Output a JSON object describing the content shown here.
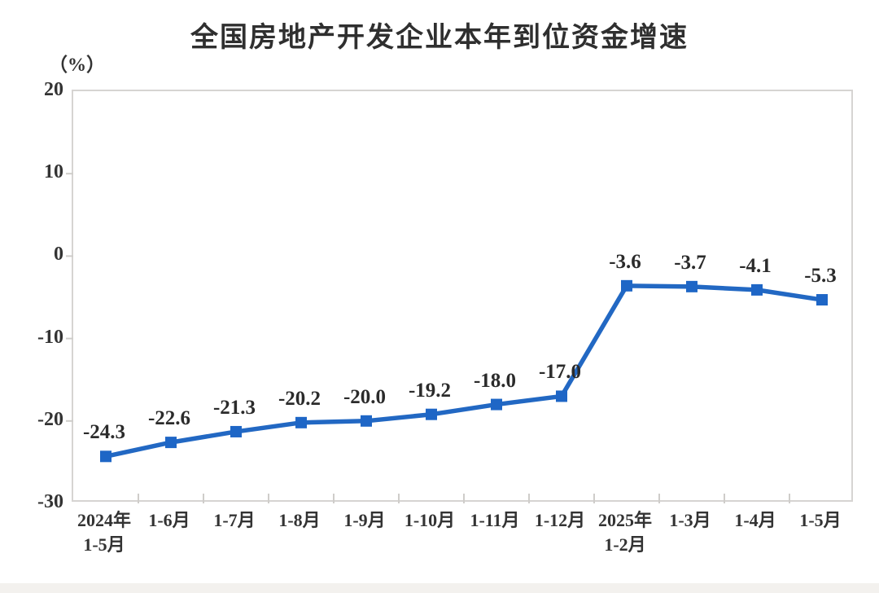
{
  "chart_data": {
    "type": "line",
    "title": "全国房地产开发企业本年到位资金增速",
    "unit_label": "（%）",
    "categories": [
      "2024年\n1-5月",
      "1-6月",
      "1-7月",
      "1-8月",
      "1-9月",
      "1-10月",
      "1-11月",
      "1-12月",
      "2025年\n1-2月",
      "1-3月",
      "1-4月",
      "1-5月"
    ],
    "values": [
      -24.3,
      -22.6,
      -21.3,
      -20.2,
      -20.0,
      -19.2,
      -18.0,
      -17.0,
      -3.6,
      -3.7,
      -4.1,
      -5.3
    ],
    "point_labels": [
      "-24.3",
      "-22.6",
      "-21.3",
      "-20.2",
      "-20.0",
      "-19.2",
      "-18.0",
      "-17.0",
      "-3.6",
      "-3.7",
      "-4.1",
      "-5.3"
    ],
    "yticks": [
      20,
      10,
      0,
      -10,
      -20,
      -30
    ],
    "ylim": [
      -30,
      20
    ],
    "grid": false,
    "legend": "none",
    "marker": "square",
    "line_color": "#2268c3",
    "marker_color": "#1e66c6",
    "axis_color": "#cfcdca",
    "title_color": "#2f2f2f",
    "text_color": "#333333"
  }
}
